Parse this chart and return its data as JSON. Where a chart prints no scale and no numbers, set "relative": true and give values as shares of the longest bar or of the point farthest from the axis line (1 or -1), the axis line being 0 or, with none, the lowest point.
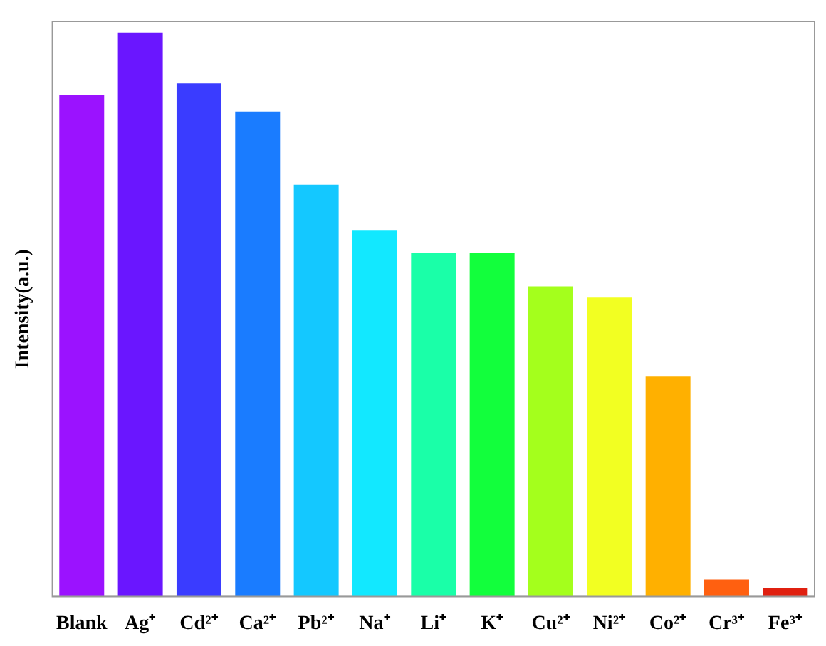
{
  "chart_data": {
    "type": "bar",
    "ylabel": "Intensity(a.u.)",
    "relative": true,
    "grid": false,
    "legend": false,
    "categories": [
      "Blank",
      "Ag⁺",
      "Cd²⁺",
      "Ca²⁺",
      "Pb²⁺",
      "Na⁺",
      "Li⁺",
      "K⁺",
      "Cu²⁺",
      "Ni²⁺",
      "Co²⁺",
      "Cr³⁺",
      "Fe³⁺"
    ],
    "values": [
      0.89,
      1,
      0.91,
      0.86,
      0.73,
      0.65,
      0.61,
      0.61,
      0.55,
      0.53,
      0.39,
      0.03,
      0.015
    ],
    "colors": [
      "#9b12ff",
      "#6a16ff",
      "#3a3cff",
      "#1a7cff",
      "#14c8ff",
      "#12e8ff",
      "#1affa8",
      "#12ff3c",
      "#a4ff1c",
      "#f2ff22",
      "#ffb000",
      "#ff6010",
      "#e02010"
    ]
  }
}
